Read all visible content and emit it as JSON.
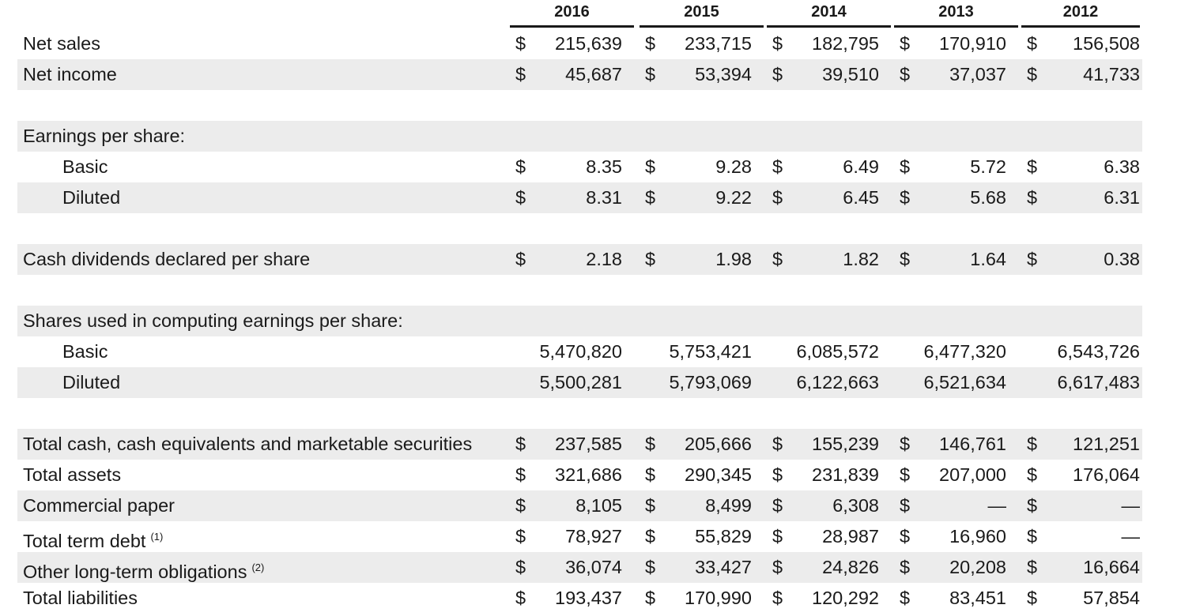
{
  "years": [
    "2016",
    "2015",
    "2014",
    "2013",
    "2012"
  ],
  "rows": [
    {
      "label": "Net sales",
      "style": "flush",
      "cur": "$",
      "values": [
        "215,639",
        "233,715",
        "182,795",
        "170,910",
        "156,508"
      ]
    },
    {
      "label": "Net income",
      "style": "flush",
      "cur": "$",
      "values": [
        "45,687",
        "53,394",
        "39,510",
        "37,037",
        "41,733"
      ]
    },
    {
      "label": "",
      "style": "blank"
    },
    {
      "label": "Earnings per share:",
      "style": "flush"
    },
    {
      "label": "Basic",
      "style": "indent",
      "cur": "$",
      "values": [
        "8.35",
        "9.28",
        "6.49",
        "5.72",
        "6.38"
      ]
    },
    {
      "label": "Diluted",
      "style": "indent",
      "cur": "$",
      "values": [
        "8.31",
        "9.22",
        "6.45",
        "5.68",
        "6.31"
      ]
    },
    {
      "label": "",
      "style": "blank"
    },
    {
      "label": "Cash dividends declared per share",
      "style": "flush",
      "cur": "$",
      "values": [
        "2.18",
        "1.98",
        "1.82",
        "1.64",
        "0.38"
      ]
    },
    {
      "label": "",
      "style": "blank"
    },
    {
      "label": "Shares used in computing earnings per share:",
      "style": "flush"
    },
    {
      "label": "Basic",
      "style": "indent",
      "values": [
        "5,470,820",
        "5,753,421",
        "6,085,572",
        "6,477,320",
        "6,543,726"
      ]
    },
    {
      "label": "Diluted",
      "style": "indent",
      "values": [
        "5,500,281",
        "5,793,069",
        "6,122,663",
        "6,521,634",
        "6,617,483"
      ]
    },
    {
      "label": "",
      "style": "blank"
    },
    {
      "label": "Total cash, cash equivalents and marketable securities",
      "style": "flush",
      "cur": "$",
      "values": [
        "237,585",
        "205,666",
        "155,239",
        "146,761",
        "121,251"
      ]
    },
    {
      "label": "Total assets",
      "style": "flush",
      "cur": "$",
      "values": [
        "321,686",
        "290,345",
        "231,839",
        "207,000",
        "176,064"
      ]
    },
    {
      "label": "Commercial paper",
      "style": "flush",
      "cur": "$",
      "values": [
        "8,105",
        "8,499",
        "6,308",
        "—",
        "—"
      ]
    },
    {
      "label": "Total term debt",
      "note": "(1)",
      "style": "flush",
      "cur": "$",
      "values": [
        "78,927",
        "55,829",
        "28,987",
        "16,960",
        "—"
      ]
    },
    {
      "label": "Other long-term obligations",
      "note": "(2)",
      "style": "flush",
      "cur": "$",
      "values": [
        "36,074",
        "33,427",
        "24,826",
        "20,208",
        "16,664"
      ]
    },
    {
      "label": "Total liabilities",
      "style": "flush",
      "cur": "$",
      "values": [
        "193,437",
        "170,990",
        "120,292",
        "83,451",
        "57,854"
      ]
    }
  ]
}
